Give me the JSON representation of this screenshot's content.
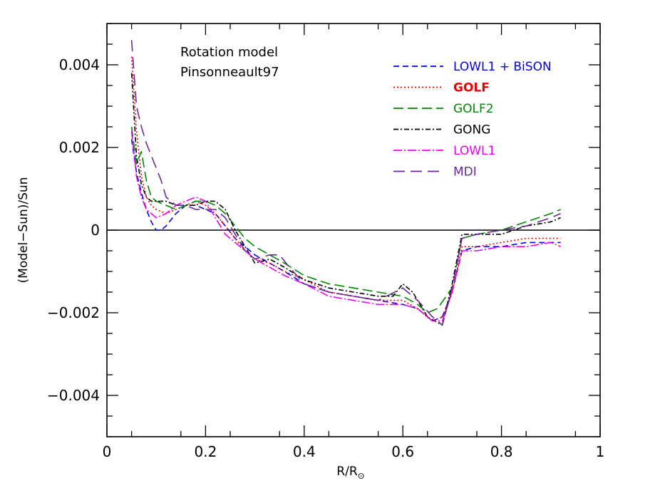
{
  "chart_data": {
    "type": "line",
    "title": "",
    "xlabel": "R/R",
    "xlabel_sub": "⊙",
    "ylabel": "(Model−Sun)/Sun",
    "xlim": [
      0,
      1
    ],
    "ylim": [
      -0.005,
      0.005
    ],
    "xticks": [
      0,
      0.2,
      0.4,
      0.6,
      0.8,
      1
    ],
    "xtick_labels": [
      "0",
      "0.2",
      "0.4",
      "0.6",
      "0.8",
      "1"
    ],
    "yticks": [
      -0.004,
      -0.002,
      0,
      0.002,
      0.004
    ],
    "ytick_labels": [
      "−0.004",
      "−0.002",
      "0",
      "0.002",
      "0.004"
    ],
    "grid": false,
    "zero_line": true,
    "legend_position": "top-right",
    "annotations": [
      "Rotation model",
      "Pinsonneault97"
    ],
    "series": [
      {
        "name": "LOWL1 + BiSON",
        "color": "#0000ee",
        "dash": "8,5",
        "x": [
          0.05,
          0.06,
          0.07,
          0.08,
          0.09,
          0.1,
          0.11,
          0.12,
          0.14,
          0.16,
          0.18,
          0.2,
          0.22,
          0.24,
          0.26,
          0.28,
          0.3,
          0.33,
          0.36,
          0.4,
          0.45,
          0.5,
          0.55,
          0.6,
          0.63,
          0.66,
          0.68,
          0.7,
          0.72,
          0.75,
          0.8,
          0.85,
          0.9,
          0.92
        ],
        "y": [
          0.0022,
          0.0014,
          0.0009,
          0.0005,
          0.0002,
          0.0,
          0.0,
          0.0001,
          0.0004,
          0.0006,
          0.0006,
          0.0005,
          0.0004,
          0.0001,
          -0.0002,
          -0.0004,
          -0.0006,
          -0.0008,
          -0.001,
          -0.0013,
          -0.0015,
          -0.0016,
          -0.0017,
          -0.0018,
          -0.0019,
          -0.0022,
          -0.0021,
          -0.0015,
          -0.0005,
          -0.0004,
          -0.0004,
          -0.0003,
          -0.0003,
          -0.0003
        ]
      },
      {
        "name": "GOLF",
        "color": "#ee0000",
        "dash": "2,3",
        "x": [
          0.05,
          0.06,
          0.07,
          0.08,
          0.09,
          0.1,
          0.12,
          0.14,
          0.16,
          0.18,
          0.2,
          0.22,
          0.24,
          0.26,
          0.28,
          0.3,
          0.33,
          0.36,
          0.4,
          0.45,
          0.5,
          0.55,
          0.6,
          0.63,
          0.66,
          0.68,
          0.7,
          0.72,
          0.75,
          0.8,
          0.85,
          0.9,
          0.92
        ],
        "y": [
          0.0042,
          0.0024,
          0.0013,
          0.0008,
          0.0006,
          0.0005,
          0.0004,
          0.0005,
          0.0006,
          0.0007,
          0.0006,
          0.0004,
          0.0001,
          -0.0002,
          -0.0005,
          -0.0007,
          -0.0008,
          -0.001,
          -0.0012,
          -0.0015,
          -0.0016,
          -0.0017,
          -0.0017,
          -0.0019,
          -0.0022,
          -0.0021,
          -0.0015,
          -0.0004,
          -0.0004,
          -0.0003,
          -0.0002,
          -0.0002,
          -0.0002
        ]
      },
      {
        "name": "GOLF2",
        "color": "#008800",
        "dash": "14,6",
        "x": [
          0.05,
          0.06,
          0.07,
          0.08,
          0.09,
          0.1,
          0.12,
          0.14,
          0.16,
          0.18,
          0.2,
          0.22,
          0.24,
          0.26,
          0.28,
          0.3,
          0.33,
          0.36,
          0.4,
          0.45,
          0.5,
          0.55,
          0.6,
          0.63,
          0.65,
          0.67,
          0.7,
          0.72,
          0.75,
          0.8,
          0.85,
          0.9,
          0.92
        ],
        "y": [
          0.0025,
          0.0016,
          0.0019,
          0.0012,
          0.0008,
          0.0007,
          0.0006,
          0.0005,
          0.0006,
          0.0007,
          0.0007,
          0.0006,
          0.0004,
          0.0001,
          -0.0002,
          -0.0004,
          -0.0006,
          -0.0008,
          -0.0011,
          -0.0013,
          -0.0014,
          -0.0015,
          -0.0016,
          -0.0018,
          -0.002,
          -0.0019,
          -0.0014,
          -0.0002,
          -0.0001,
          0.0,
          0.0002,
          0.0004,
          0.0005
        ]
      },
      {
        "name": "GONG",
        "color": "#000000",
        "dash": "7,3,2,3",
        "x": [
          0.05,
          0.06,
          0.07,
          0.08,
          0.09,
          0.1,
          0.12,
          0.14,
          0.16,
          0.18,
          0.2,
          0.22,
          0.24,
          0.26,
          0.28,
          0.3,
          0.33,
          0.36,
          0.4,
          0.45,
          0.5,
          0.55,
          0.58,
          0.6,
          0.62,
          0.65,
          0.68,
          0.7,
          0.72,
          0.75,
          0.8,
          0.85,
          0.9,
          0.92
        ],
        "y": [
          0.0038,
          0.0018,
          0.0011,
          0.0008,
          0.0007,
          0.0007,
          0.0007,
          0.0006,
          0.0006,
          0.0006,
          0.0007,
          0.0007,
          0.0005,
          0.0,
          -0.0004,
          -0.0008,
          -0.0007,
          -0.0009,
          -0.0012,
          -0.0014,
          -0.0015,
          -0.0016,
          -0.0016,
          -0.0013,
          -0.0015,
          -0.0021,
          -0.0023,
          -0.0013,
          -0.0001,
          -0.0001,
          -0.0001,
          0.0001,
          0.0002,
          0.0003
        ]
      },
      {
        "name": "LOWL1",
        "color": "#ee00ee",
        "dash": "12,3,2,3",
        "x": [
          0.05,
          0.06,
          0.07,
          0.08,
          0.09,
          0.1,
          0.12,
          0.14,
          0.16,
          0.18,
          0.2,
          0.22,
          0.24,
          0.26,
          0.28,
          0.3,
          0.33,
          0.36,
          0.4,
          0.45,
          0.5,
          0.55,
          0.6,
          0.63,
          0.66,
          0.68,
          0.7,
          0.72,
          0.75,
          0.8,
          0.85,
          0.9,
          0.92
        ],
        "y": [
          0.0024,
          0.0013,
          0.0008,
          0.0005,
          0.0004,
          0.0003,
          0.0004,
          0.0006,
          0.0007,
          0.0008,
          0.0007,
          0.0003,
          -0.0001,
          -0.0003,
          -0.0005,
          -0.0007,
          -0.0009,
          -0.0011,
          -0.0013,
          -0.0016,
          -0.0017,
          -0.0018,
          -0.0018,
          -0.0019,
          -0.0022,
          -0.0022,
          -0.0015,
          -0.0005,
          -0.0005,
          -0.0004,
          -0.0004,
          -0.0003,
          -0.0004
        ]
      },
      {
        "name": "MDI",
        "color": "#6a2a9a",
        "dash": "16,8",
        "x": [
          0.05,
          0.06,
          0.07,
          0.08,
          0.09,
          0.1,
          0.11,
          0.12,
          0.14,
          0.16,
          0.18,
          0.2,
          0.22,
          0.24,
          0.26,
          0.28,
          0.3,
          0.33,
          0.35,
          0.37,
          0.4,
          0.45,
          0.5,
          0.55,
          0.6,
          0.63,
          0.66,
          0.68,
          0.7,
          0.72,
          0.75,
          0.8,
          0.85,
          0.9,
          0.92
        ],
        "y": [
          0.0046,
          0.003,
          0.0025,
          0.0021,
          0.0018,
          0.0015,
          0.0012,
          0.0008,
          0.0006,
          0.0006,
          0.0005,
          0.0005,
          0.0005,
          0.0003,
          -0.0001,
          -0.0005,
          -0.0007,
          -0.0006,
          -0.0006,
          -0.0009,
          -0.0013,
          -0.0015,
          -0.0016,
          -0.0017,
          -0.0014,
          -0.0017,
          -0.0021,
          -0.0023,
          -0.0014,
          -0.0002,
          -0.0001,
          0.0,
          0.0001,
          0.0003,
          0.0004
        ]
      }
    ]
  }
}
